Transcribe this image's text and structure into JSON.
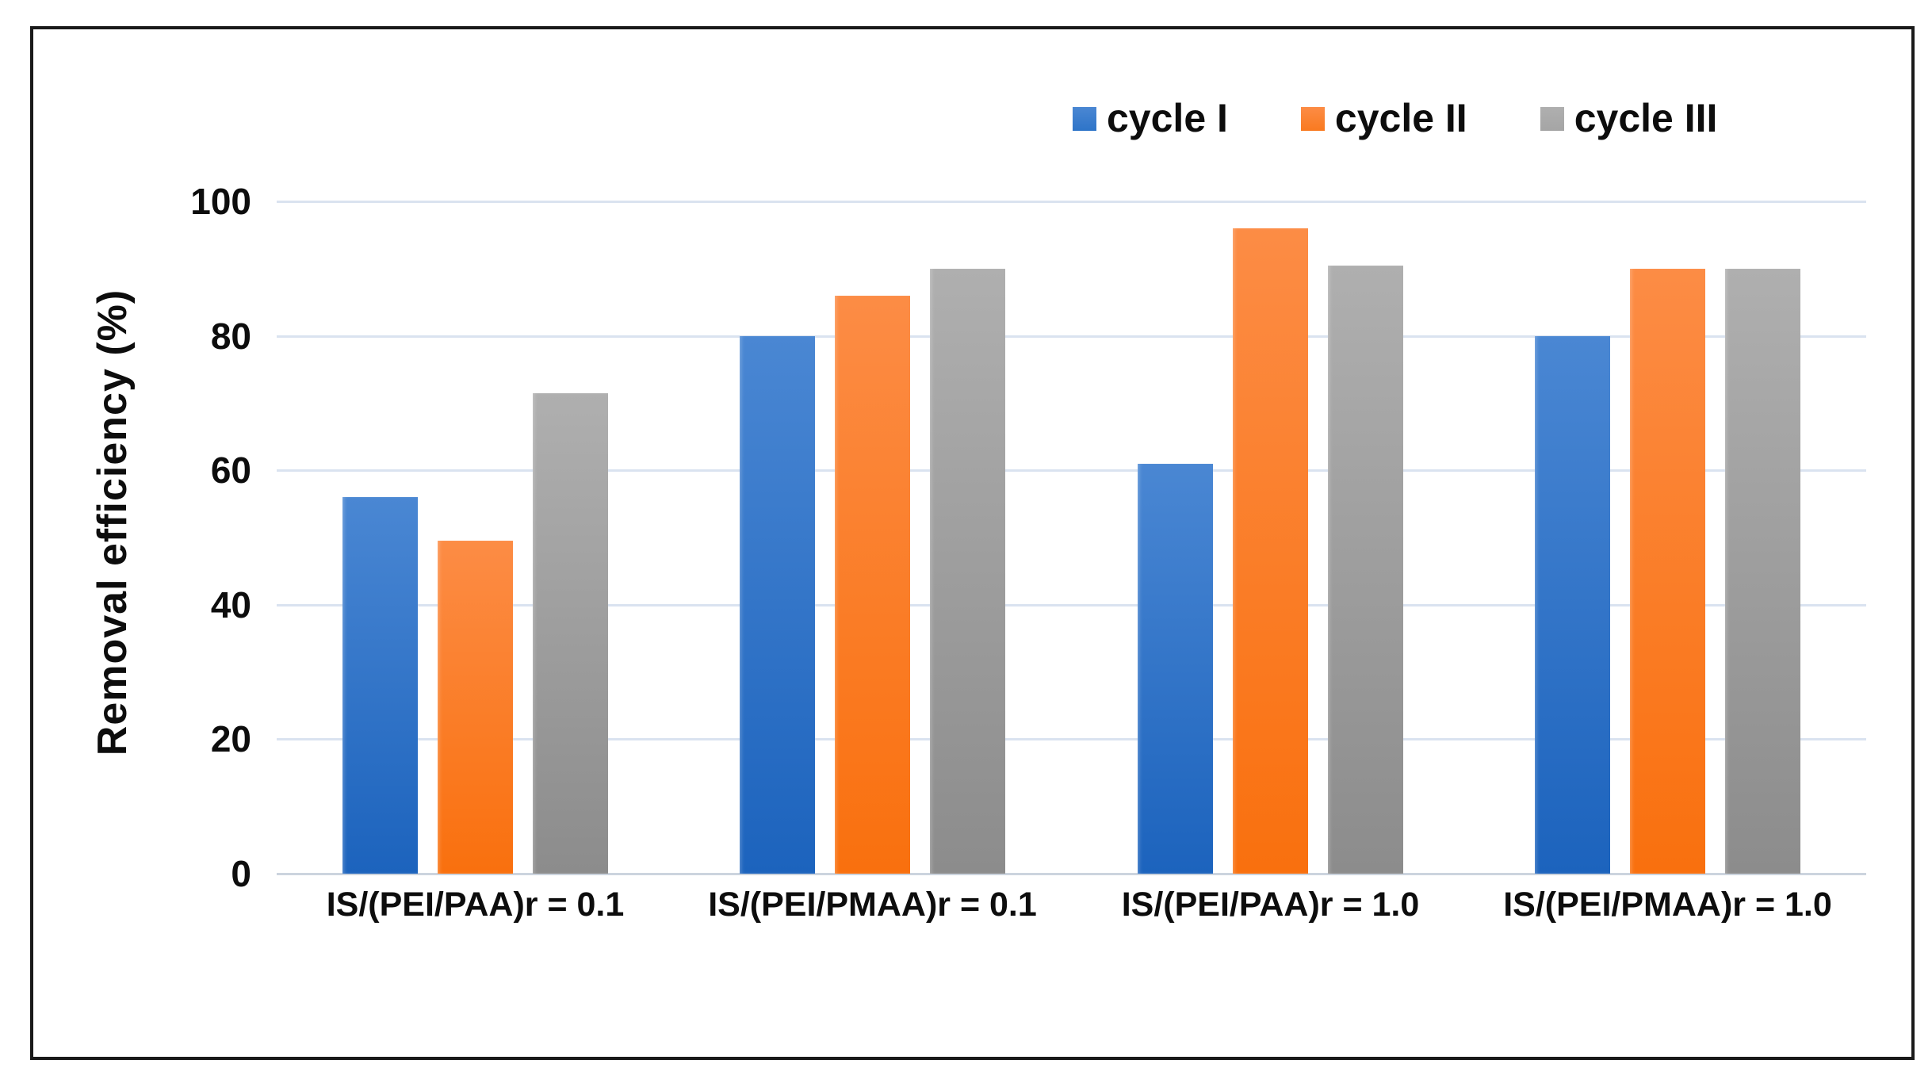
{
  "figure": {
    "background_color": "#ffffff",
    "border_color": "#1a1a1a",
    "gridline_color": "#dae3f0",
    "axis_line_color": "#ccd4de",
    "text_color": "#0d0d0d"
  },
  "chart_data": {
    "type": "bar",
    "title": "",
    "xlabel": "",
    "ylabel": "Removal efficiency (%)",
    "ylim": [
      0,
      100
    ],
    "yticks": [
      0,
      20,
      40,
      60,
      80,
      100
    ],
    "grid": "horizontal",
    "legend_position": "top-right",
    "categories": [
      "IS/(PEI/PAA)r = 0.1",
      "IS/(PEI/PMAA)r = 0.1",
      "IS/(PEI/PAA)r = 1.0",
      "IS/(PEI/PMAA)r = 1.0"
    ],
    "series": [
      {
        "name": "cycle I",
        "color": "#2e74c8",
        "color_top": "#4a87d3",
        "color_bottom": "#1c63bd",
        "values": [
          56,
          80,
          61,
          80
        ]
      },
      {
        "name": "cycle II",
        "color": "#f97a20",
        "color_top": "#fc8c45",
        "color_bottom": "#f9700e",
        "values": [
          49.5,
          86,
          96,
          90
        ]
      },
      {
        "name": "cycle III",
        "color": "#a5a5a5",
        "color_top": "#afafaf",
        "color_bottom": "#8c8c8c",
        "values": [
          71.5,
          90,
          90.5,
          90
        ]
      }
    ]
  }
}
